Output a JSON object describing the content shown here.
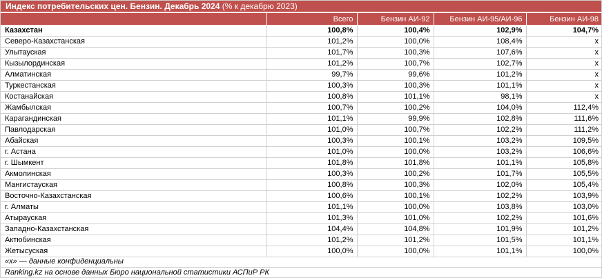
{
  "title": {
    "bold": "Индекс потребительских цен. Бензин. Декабрь 2024",
    "normal": " (% к декабрю 2023)"
  },
  "columns": [
    "",
    "Всего",
    "Бензин АИ-92",
    "Бензин АИ-95/АИ-96",
    "Бензин АИ-98"
  ],
  "rows": [
    [
      "Казахстан",
      "100,8%",
      "100,4%",
      "102,9%",
      "104,7%"
    ],
    [
      "Северо-Казахстанская",
      "101,2%",
      "100,0%",
      "108,4%",
      "x"
    ],
    [
      "Улытауская",
      "101,7%",
      "100,3%",
      "107,6%",
      "x"
    ],
    [
      "Кызылординская",
      "101,2%",
      "100,7%",
      "102,7%",
      "x"
    ],
    [
      "Алматинская",
      "99,7%",
      "99,6%",
      "101,2%",
      "x"
    ],
    [
      "Туркестанская",
      "100,3%",
      "100,3%",
      "101,1%",
      "x"
    ],
    [
      "Костанайская",
      "100,8%",
      "101,1%",
      "98,1%",
      "x"
    ],
    [
      "Жамбылская",
      "100,7%",
      "100,2%",
      "104,0%",
      "112,4%"
    ],
    [
      "Карагандинская",
      "101,1%",
      "99,9%",
      "102,8%",
      "111,6%"
    ],
    [
      "Павлодарская",
      "101,0%",
      "100,7%",
      "102,2%",
      "111,2%"
    ],
    [
      "Абайская",
      "100,3%",
      "100,1%",
      "103,2%",
      "109,5%"
    ],
    [
      "г. Астана",
      "101,0%",
      "100,0%",
      "103,2%",
      "106,6%"
    ],
    [
      "г. Шымкент",
      "101,8%",
      "101,8%",
      "101,1%",
      "105,8%"
    ],
    [
      "Акмолинская",
      "100,3%",
      "100,2%",
      "101,7%",
      "105,5%"
    ],
    [
      "Мангистауская",
      "100,8%",
      "100,3%",
      "102,0%",
      "105,4%"
    ],
    [
      "Восточно-Казахстанская",
      "100,6%",
      "100,1%",
      "102,2%",
      "103,9%"
    ],
    [
      "г. Алматы",
      "101,1%",
      "100,0%",
      "103,8%",
      "103,0%"
    ],
    [
      "Атырауская",
      "101,3%",
      "101,0%",
      "102,2%",
      "101,6%"
    ],
    [
      "Западно-Казахстанская",
      "104,4%",
      "104,8%",
      "101,9%",
      "101,2%"
    ],
    [
      "Актюбинская",
      "101,2%",
      "101,2%",
      "101,5%",
      "101,1%"
    ],
    [
      "Жетысуская",
      "100,0%",
      "100,0%",
      "101,1%",
      "100,0%"
    ]
  ],
  "footnotes": {
    "confidential": "«х» — данные конфиденциальны",
    "source": "Ranking.kz на основе данных Бюро национальной статистики АСПиР РК"
  },
  "colors": {
    "header_bg": "#c0504d",
    "header_text": "#ffffff",
    "grid": "#d0d0d0"
  }
}
